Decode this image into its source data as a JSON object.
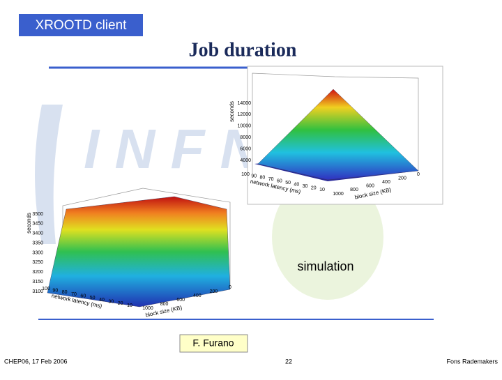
{
  "header": {
    "tag": "XROOTD client",
    "title": "Job duration"
  },
  "plots": [
    {
      "z_label": "seconds",
      "z_ticks": [
        "14000",
        "12000",
        "10000",
        "8000",
        "6000",
        "4000"
      ],
      "latency_label": "network latency (ms)",
      "latency_ticks": [
        "100",
        "90",
        "80",
        "70",
        "60",
        "50",
        "40",
        "30",
        "20",
        "10"
      ],
      "block_label": "block size (KB)",
      "block_ticks": [
        "1000",
        "800",
        "600",
        "400",
        "200",
        "0"
      ]
    },
    {
      "z_label": "seconds",
      "z_ticks": [
        "3500",
        "3450",
        "3400",
        "3350",
        "3300",
        "3250",
        "3200",
        "3150",
        "3100"
      ],
      "latency_label": "network latency (ms)",
      "latency_ticks": [
        "100",
        "90",
        "80",
        "70",
        "60",
        "50",
        "40",
        "30",
        "20",
        "10"
      ],
      "block_label": "block size (KB)",
      "block_ticks": [
        "1000",
        "800",
        "600",
        "400",
        "200",
        "0"
      ]
    }
  ],
  "caption": "simulation",
  "author": "F. Furano",
  "footer": {
    "left": "CHEP06, 17 Feb 2006",
    "center": "22",
    "right": "Fons Rademakers"
  }
}
